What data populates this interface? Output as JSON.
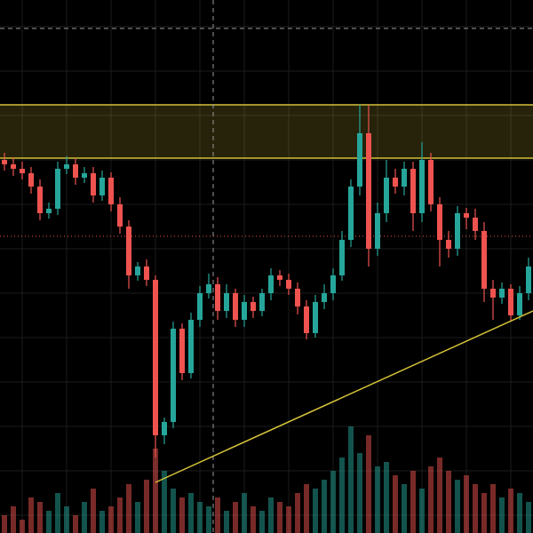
{
  "chart_data": {
    "type": "candlestick",
    "open": [
      420,
      415,
      410,
      405,
      390,
      360,
      365,
      410,
      415,
      400,
      405,
      380,
      400,
      370,
      345,
      290,
      300,
      285,
      110,
      125,
      230,
      180,
      240,
      270,
      280,
      250,
      270,
      240,
      260,
      250,
      270,
      290,
      285,
      275,
      255,
      225,
      260,
      270,
      290,
      330,
      390,
      450,
      320,
      360,
      400,
      390,
      410,
      360,
      420,
      370,
      330,
      320,
      360,
      355,
      340,
      275,
      265,
      275,
      245,
      270
    ],
    "high": [
      428,
      423,
      418,
      412,
      398,
      372,
      418,
      424,
      422,
      412,
      412,
      408,
      406,
      378,
      352,
      305,
      308,
      290,
      130,
      238,
      236,
      248,
      278,
      292,
      288,
      280,
      275,
      268,
      266,
      275,
      298,
      296,
      292,
      282,
      262,
      268,
      280,
      298,
      340,
      398,
      482,
      482,
      372,
      420,
      410,
      418,
      418,
      440,
      428,
      378,
      340,
      368,
      366,
      365,
      350,
      285,
      282,
      280,
      278,
      310
    ],
    "low": [
      408,
      402,
      398,
      382,
      352,
      354,
      358,
      404,
      392,
      394,
      372,
      374,
      362,
      337,
      275,
      284,
      278,
      85,
      100,
      118,
      172,
      174,
      232,
      264,
      240,
      242,
      232,
      232,
      242,
      244,
      262,
      278,
      268,
      246,
      218,
      220,
      252,
      262,
      284,
      322,
      380,
      300,
      312,
      350,
      382,
      380,
      340,
      350,
      362,
      300,
      310,
      312,
      342,
      330,
      260,
      240,
      258,
      238,
      240,
      262
    ],
    "close": [
      415,
      410,
      405,
      390,
      360,
      365,
      410,
      415,
      400,
      405,
      380,
      400,
      370,
      345,
      290,
      300,
      285,
      110,
      125,
      230,
      180,
      240,
      270,
      280,
      250,
      270,
      240,
      260,
      250,
      270,
      290,
      285,
      275,
      255,
      225,
      260,
      270,
      290,
      330,
      390,
      450,
      320,
      360,
      400,
      390,
      410,
      360,
      420,
      370,
      330,
      320,
      360,
      355,
      340,
      275,
      265,
      275,
      245,
      270,
      300
    ],
    "volume": [
      20,
      30,
      15,
      40,
      35,
      25,
      45,
      30,
      20,
      35,
      50,
      25,
      30,
      40,
      55,
      35,
      60,
      95,
      70,
      50,
      40,
      45,
      35,
      30,
      40,
      25,
      35,
      45,
      30,
      25,
      40,
      35,
      30,
      45,
      55,
      50,
      60,
      70,
      85,
      120,
      90,
      110,
      75,
      80,
      65,
      55,
      70,
      50,
      75,
      85,
      70,
      60,
      65,
      55,
      45,
      55,
      40,
      50,
      45,
      35
    ],
    "up_color": "#26a69a",
    "down_color": "#ef5350",
    "xlim": [
      -0.5,
      59.5
    ],
    "ylim": [
      0,
      600
    ],
    "volume_lim": [
      0,
      600
    ],
    "xticks": [
      2,
      7,
      12,
      17,
      22,
      27,
      32,
      37,
      42,
      47,
      52,
      57
    ],
    "yticks": [
      20,
      70,
      120,
      170,
      220,
      270,
      320,
      370,
      420,
      470,
      520,
      570
    ],
    "grid": true,
    "zone": {
      "from": 422,
      "to": 482,
      "color": "#d4c238"
    },
    "level": {
      "value": 334,
      "color": "#ef5350"
    },
    "trendline": {
      "x": [
        17,
        59.5
      ],
      "y": [
        57,
        250
      ],
      "color": "#d4c238"
    },
    "crosshair": {
      "x": 23.5,
      "y": 568
    }
  }
}
